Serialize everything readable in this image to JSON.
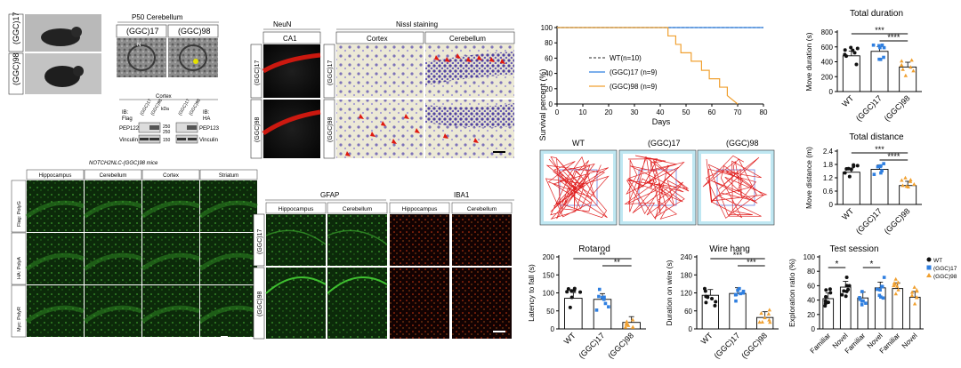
{
  "panelA": {
    "title": "P50 Cerebellum",
    "geno_top": "(GGC)17",
    "geno_bottom": "(GGC)98",
    "em_label_17": "(GGC)17",
    "em_label_98": "(GGC)98",
    "em_marker": "N",
    "blot_title": "Cortex",
    "ib_flag": "IB:",
    "ib_flag2": "Flag",
    "ib_ha": "IB:",
    "ib_ha2": "HA",
    "kda": "kDa",
    "mw_250a": "250",
    "mw_150": "150",
    "mw_250b": "250",
    "mw_150b": "150",
    "pep122": "PEP122",
    "pep123": "PEP123",
    "vinculin": "Vinculin",
    "vinculin2": "Vinculin",
    "col17": "(GGC)17",
    "col98": "(GGC)98"
  },
  "panelB": {
    "title": "NOTCH2NLC-(GGC)98 mice",
    "cols": [
      "Hippocampus",
      "Cerebellum",
      "Cortex",
      "Striatum"
    ],
    "rows": [
      "Flag: PolyG",
      "HA: PolyA",
      "Myc: PolyR"
    ]
  },
  "panelC": {
    "neun": "NeuN",
    "ca1": "CA1",
    "nissl": "Nissl staining",
    "cortex": "Cortex",
    "cerebellum": "Cerebellum",
    "row17": "(GGC)17",
    "row98": "(GGC)98"
  },
  "panelD": {
    "gfap": "GFAP",
    "iba1": "IBA1",
    "cols": [
      "Hippocampus",
      "Cerebellum",
      "Hippocampus",
      "Cerebellum"
    ],
    "row17": "(GGC)17",
    "row98": "(GGC)98"
  },
  "survival": {
    "ylabel": "Survival percent (%)",
    "xlabel": "Days",
    "yticks": [
      "0",
      "20",
      "40",
      "60",
      "80",
      "100"
    ],
    "xticks": [
      "0",
      "10",
      "20",
      "30",
      "40",
      "50",
      "60",
      "70",
      "80"
    ],
    "legend": [
      "WT(n=10)",
      "(GGC)17 (n=9)",
      "(GGC)98 (n=9)"
    ]
  },
  "tracks": {
    "labels": [
      "WT",
      "(GGC)17",
      "(GGC)98"
    ]
  },
  "colors": {
    "wt": "#111111",
    "ggc17": "#2f7fe0",
    "ggc98": "#f0a030",
    "track": "#e02020",
    "arena": "#bfe7f2"
  },
  "chart_data": [
    {
      "type": "line",
      "ylabel": "Survival percent (%)",
      "xlabel": "Days",
      "xlim": [
        0,
        80
      ],
      "ylim": [
        0,
        100
      ],
      "series": [
        {
          "name": "WT(n=10)",
          "x": [
            0,
            80
          ],
          "values": [
            100,
            100
          ]
        },
        {
          "name": "(GGC)17 (n=9)",
          "x": [
            0,
            80
          ],
          "values": [
            100,
            100
          ]
        },
        {
          "name": "(GGC)98 (n=9)",
          "x": [
            0,
            43,
            43,
            46,
            46,
            48,
            48,
            52,
            52,
            56,
            56,
            59,
            59,
            63,
            63,
            66,
            66,
            70
          ],
          "values": [
            100,
            100,
            89,
            89,
            78,
            78,
            67,
            67,
            56,
            56,
            44,
            44,
            33,
            33,
            22,
            22,
            11,
            0
          ]
        }
      ]
    },
    {
      "type": "bar",
      "title": "Total duration",
      "ylabel": "Move duration (s)",
      "categories": [
        "WT",
        "(GGC)17",
        "(GGC)98"
      ],
      "values": [
        480,
        540,
        330
      ],
      "ylim": [
        0,
        800
      ],
      "yticks": [
        "0",
        "200",
        "400",
        "600",
        "800"
      ],
      "sig": [
        "***",
        "****"
      ]
    },
    {
      "type": "bar",
      "title": "Total distance",
      "ylabel": "Move distance (m)",
      "categories": [
        "WT",
        "(GGC)17",
        "(GGC)98"
      ],
      "values": [
        1.45,
        1.58,
        0.85
      ],
      "ylim": [
        0,
        2.4
      ],
      "yticks": [
        "0",
        "0.6",
        "1.2",
        "1.8",
        "2.4"
      ],
      "sig": [
        "***",
        "****"
      ]
    },
    {
      "type": "bar",
      "title": "Rotarod",
      "ylabel": "Latency to fall (s)",
      "categories": [
        "WT",
        "(GGC)17",
        "(GGC)98"
      ],
      "values": [
        85,
        82,
        18
      ],
      "ylim": [
        0,
        200
      ],
      "yticks": [
        "0",
        "50",
        "100",
        "150",
        "200"
      ],
      "sig": [
        "**",
        "**"
      ]
    },
    {
      "type": "bar",
      "title": "Wire hang",
      "ylabel": "Duration on wire (s)",
      "categories": [
        "WT",
        "(GGC)17",
        "(GGC)98"
      ],
      "values": [
        112,
        118,
        38
      ],
      "ylim": [
        0,
        240
      ],
      "yticks": [
        "0",
        "60",
        "120",
        "180",
        "240"
      ],
      "sig": [
        "***",
        "***"
      ]
    },
    {
      "type": "bar",
      "title": "Test session",
      "ylabel": "Exploration ratio (%)",
      "categories": [
        "Familiar",
        "Novel",
        "Familiar",
        "Novel",
        "Familiar",
        "Novel"
      ],
      "values": [
        42,
        58,
        43,
        57,
        56,
        44
      ],
      "ylim": [
        0,
        100
      ],
      "yticks": [
        "0",
        "20",
        "40",
        "60",
        "80",
        "100"
      ],
      "legend": [
        "WT",
        "(GGC)17",
        "(GGC)98"
      ],
      "sig": [
        "*",
        "*"
      ]
    }
  ]
}
